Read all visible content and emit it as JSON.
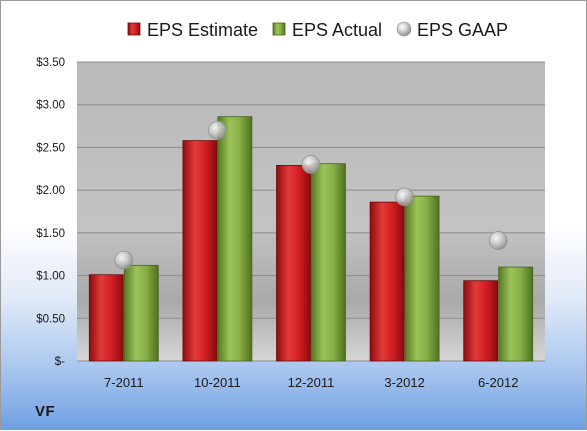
{
  "chart_data": {
    "type": "bar",
    "title": "",
    "xlabel": "",
    "ylabel": "",
    "ylim": [
      0,
      3.5
    ],
    "yticks": [
      0,
      0.5,
      1.0,
      1.5,
      2.0,
      2.5,
      3.0,
      3.5
    ],
    "ytick_labels": [
      "$-",
      "$0.50",
      "$1.00",
      "$1.50",
      "$2.00",
      "$2.50",
      "$3.00",
      "$3.50"
    ],
    "categories": [
      "7-2011",
      "10-2011",
      "12-2011",
      "3-2012",
      "6-2012"
    ],
    "series": [
      {
        "name": "EPS Estimate",
        "kind": "bar",
        "color": "#c8191c",
        "values": [
          1.01,
          2.58,
          2.29,
          1.86,
          0.94
        ]
      },
      {
        "name": "EPS Actual",
        "kind": "bar",
        "color": "#7ea63e",
        "values": [
          1.12,
          2.86,
          2.31,
          1.93,
          1.1
        ]
      },
      {
        "name": "EPS GAAP",
        "kind": "marker",
        "color": "#b5b5b5",
        "values": [
          1.18,
          2.7,
          2.3,
          1.92,
          1.41
        ]
      }
    ],
    "grid": true,
    "legend": "top"
  },
  "footer": {
    "ticker": "VF"
  }
}
